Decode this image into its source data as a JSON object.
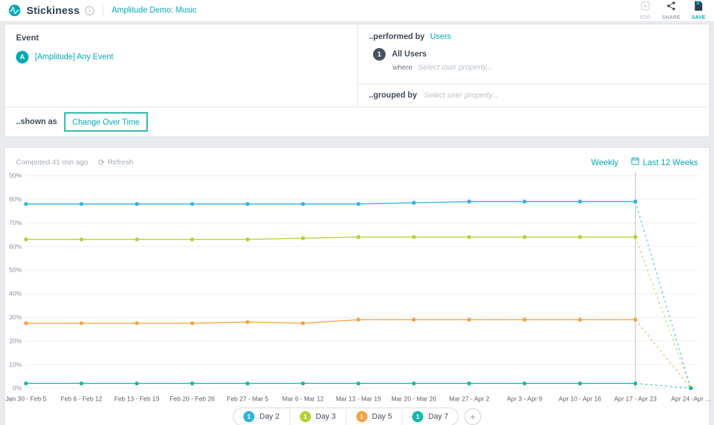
{
  "header": {
    "app_name": "Stickiness",
    "breadcrumb": "Amplitude Demo: Music",
    "actions": {
      "add": "ADD",
      "share": "SHARE",
      "save": "SAVE"
    }
  },
  "query": {
    "event_section_label": "Event",
    "event_badge": "A",
    "event_name": "[Amplitude] Any Event",
    "performed_by_label": "..performed by",
    "performed_by_value": "Users",
    "segment_badge": "1",
    "segment_name": "All Users",
    "where_label": "where",
    "where_placeholder": "Select user property...",
    "grouped_by_label": "..grouped by",
    "grouped_by_placeholder": "Select user property...",
    "shown_as_label": "..shown as",
    "shown_as_value": "Change Over Time"
  },
  "chart_header": {
    "computed": "Computed 41 min ago",
    "refresh_label": "Refresh",
    "interval_label": "Weekly",
    "range_label": "Last 12 Weeks"
  },
  "legend": {
    "badge": "1",
    "add_label": "+"
  },
  "chart_data": {
    "type": "line",
    "x": [
      "Jan 30 - Feb 5",
      "Feb 6 - Feb 12",
      "Feb 13 - Feb 19",
      "Feb 20 - Feb 26",
      "Feb 27 - Mar 5",
      "Mar 6 - Mar 12",
      "Mar 13 - Mar 19",
      "Mar 20 - Mar 26",
      "Mar 27 - Apr 2",
      "Apr 3 - Apr 9",
      "Apr 10 - Apr 16",
      "Apr 17 - Apr 23",
      "Apr 24 -Apr ..."
    ],
    "series": [
      {
        "name": "Day 2",
        "color": "#30b3e4",
        "values": [
          78,
          78,
          78,
          78,
          78,
          78,
          78,
          78.5,
          79,
          79,
          79,
          79,
          0
        ]
      },
      {
        "name": "Day 3",
        "color": "#b2d235",
        "values": [
          63,
          63,
          63,
          63,
          63,
          63.5,
          64,
          64,
          64,
          64,
          64,
          64,
          0
        ]
      },
      {
        "name": "Day 5",
        "color": "#f9a13e",
        "values": [
          27.5,
          27.5,
          27.5,
          27.5,
          28,
          27.5,
          29,
          29,
          29,
          29,
          29,
          29,
          0
        ]
      },
      {
        "name": "Day 7",
        "color": "#16b7ac",
        "values": [
          2,
          2,
          2,
          2,
          2,
          2,
          2,
          2,
          2,
          2,
          2,
          2,
          0
        ]
      }
    ],
    "ylim": [
      0,
      90
    ],
    "ytick_step": 10,
    "ytick_suffix": "%",
    "solid_until_index": 11,
    "vline_index": 11,
    "grid": true,
    "legend_position": "bottom"
  }
}
